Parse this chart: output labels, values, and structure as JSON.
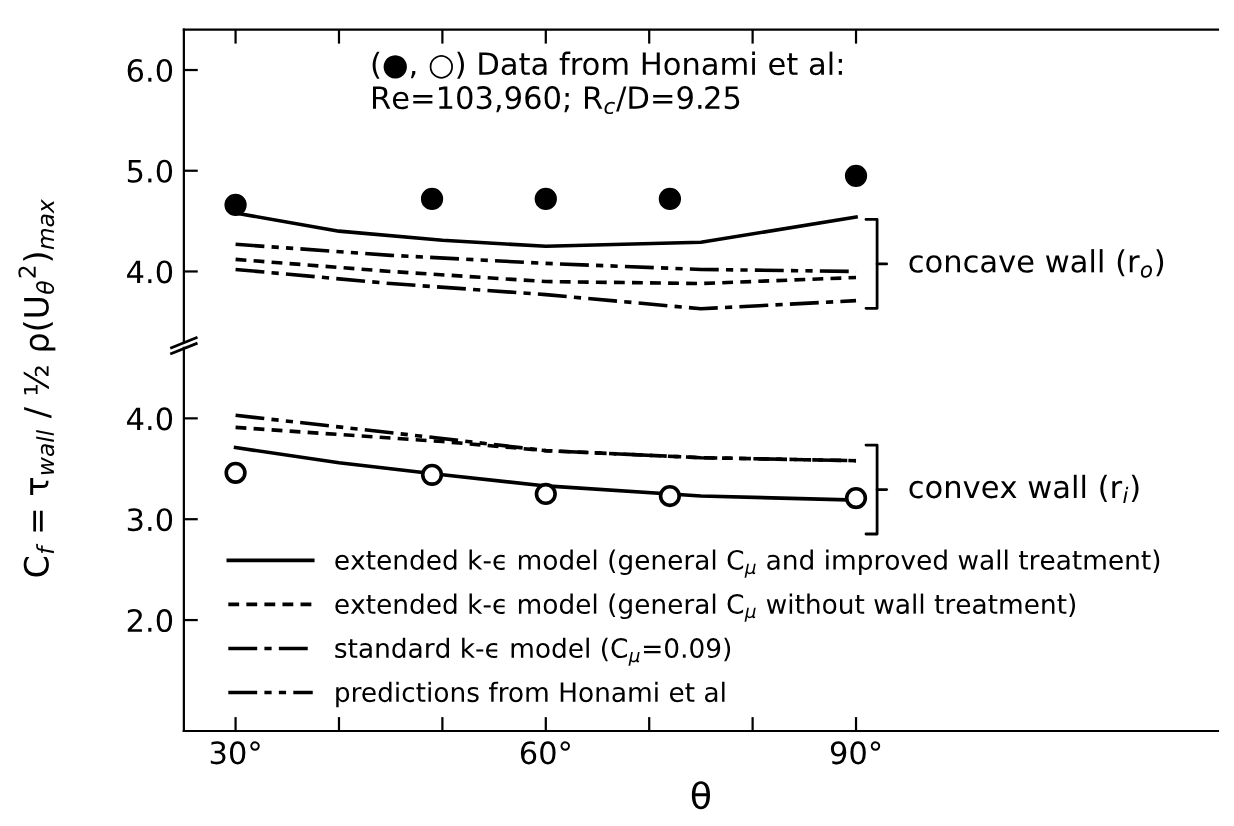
{
  "chart_data": [
    {
      "type": "line",
      "ylabel": "C$_{f}$ = τ$_{wall}$ / ½ ρ(U$_{θ}$$^{2}$)$_{max}$",
      "xlim": [
        25,
        125
      ],
      "ylim": [
        3.3,
        6.4
      ],
      "xticks": [
        30,
        {
          "value": 40,
          "label": null
        },
        {
          "value": 50,
          "label": null
        },
        60,
        {
          "value": 70,
          "label": null
        },
        {
          "value": 80,
          "label": null
        },
        90
      ],
      "yticks": [
        {
          "value": 4,
          "label": "4.0"
        },
        {
          "value": 5,
          "label": "5.0"
        },
        {
          "value": 6,
          "label": "6.0"
        }
      ],
      "tick_labels": "y",
      "legend": "bottom left",
      "grid": false,
      "annotations": [
        "(●, ○) Data from Honami et al:\nRe=103,960; R$_{c}$/D=9.25",
        "concave wall (r$_{o}$)"
      ],
      "series": [
        {
          "type": "scatter",
          "marker": "circle",
          "color": "#000000",
          "x": [
            30,
            49,
            60,
            72,
            90
          ],
          "values": [
            4.66,
            4.72,
            4.72,
            4.72,
            4.95
          ]
        },
        {
          "name": "extended k-ϵ model (general C$_{μ}$ and improved wall treatment)",
          "color": "#000000",
          "line_style": "solid",
          "x": [
            30,
            40,
            50,
            60,
            75,
            90
          ],
          "values": [
            4.58,
            4.4,
            4.31,
            4.25,
            4.29,
            4.54
          ]
        },
        {
          "name": "extended k-ϵ model (general C$_{μ}$ without wall treatment)",
          "color": "#000000",
          "line_style": "dashed",
          "x": [
            30,
            45,
            60,
            75,
            90
          ],
          "values": [
            4.12,
            4.0,
            3.9,
            3.88,
            3.94
          ]
        },
        {
          "name": "standard k-ϵ model (C$_{μ}$=0.09)",
          "color": "#000000",
          "line_style": "dashdot",
          "x": [
            30,
            45,
            60,
            75,
            90
          ],
          "values": [
            4.02,
            3.88,
            3.77,
            3.63,
            3.71
          ]
        },
        {
          "name": "predictions from Honami et al",
          "color": "#000000",
          "line_style": "dashdotdot",
          "x": [
            30,
            45,
            60,
            75,
            90
          ],
          "values": [
            4.27,
            4.16,
            4.08,
            4.02,
            4.0
          ]
        }
      ]
    },
    {
      "type": "line",
      "xlabel": "θ",
      "xlim": [
        25,
        125
      ],
      "ylim": [
        0.9,
        4.7
      ],
      "xticks": [
        {
          "value": 30,
          "label": "30°"
        },
        {
          "value": 40,
          "label": null
        },
        {
          "value": 50,
          "label": null
        },
        {
          "value": 60,
          "label": "60°"
        },
        {
          "value": 70,
          "label": null
        },
        {
          "value": 80,
          "label": null
        },
        {
          "value": 90,
          "label": "90°"
        }
      ],
      "yticks": [
        {
          "value": 2,
          "label": "2.0"
        },
        {
          "value": 3,
          "label": "3.0"
        },
        {
          "value": 4,
          "label": "4.0"
        }
      ],
      "grid": false,
      "annotations": [
        "convex wall (r$_{i}$)"
      ],
      "series": [
        {
          "type": "scatter",
          "marker": "circle",
          "color": "#ffffff",
          "x": [
            30,
            49,
            60,
            72,
            90
          ],
          "values": [
            3.46,
            3.44,
            3.25,
            3.23,
            3.21
          ]
        },
        {
          "color": "#000000",
          "line_style": "solid",
          "x": [
            30,
            40,
            50,
            60,
            75,
            90
          ],
          "values": [
            3.71,
            3.56,
            3.44,
            3.33,
            3.23,
            3.19
          ]
        },
        {
          "color": "#000000",
          "line_style": "dashed",
          "x": [
            30,
            50,
            60,
            75,
            90
          ],
          "values": [
            3.91,
            3.77,
            3.68,
            3.61,
            3.58
          ]
        },
        {
          "color": "#000000",
          "line_style": "dashdotdot",
          "x": [
            30,
            50,
            60,
            75,
            90
          ],
          "values": [
            4.03,
            3.8,
            3.68,
            3.61,
            3.58
          ]
        }
      ]
    }
  ]
}
